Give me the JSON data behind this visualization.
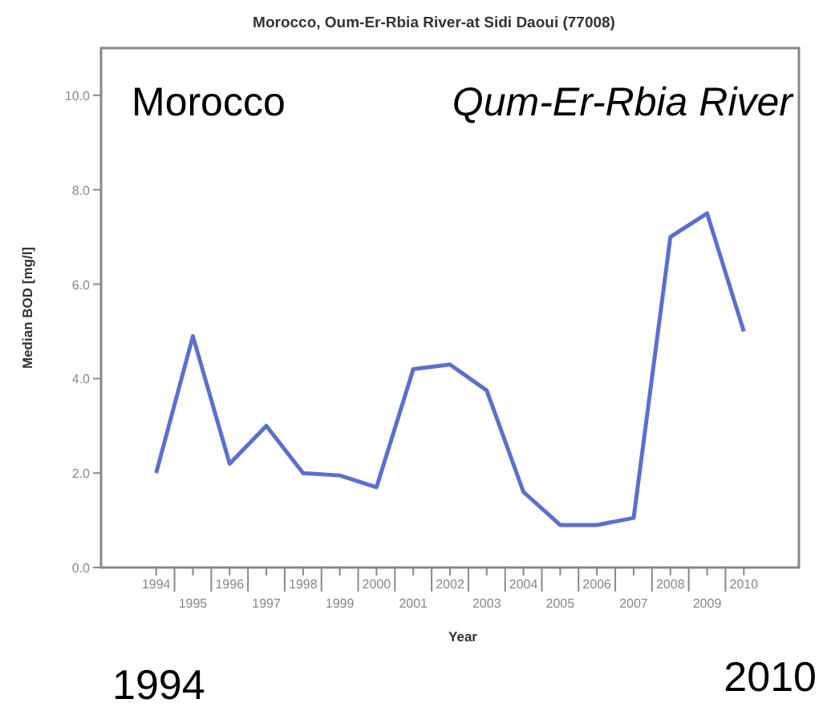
{
  "chart_data": {
    "type": "line",
    "title": "Morocco, Oum-Er-Rbia River-at Sidi Daoui (77008)",
    "xlabel": "Year",
    "ylabel": "Median BOD [mg/l]",
    "categories": [
      "1994",
      "1995",
      "1996",
      "1997",
      "1998",
      "1999",
      "2000",
      "2001",
      "2002",
      "2003",
      "2004",
      "2005",
      "2006",
      "2007",
      "2008",
      "2009",
      "2010"
    ],
    "series": [
      {
        "color": "#5b6fd0",
        "values": [
          2.0,
          4.9,
          2.2,
          3.0,
          2.0,
          1.95,
          1.7,
          4.2,
          4.3,
          3.75,
          1.6,
          0.9,
          0.9,
          1.05,
          7.0,
          7.5,
          5.0
        ]
      }
    ],
    "ylim": [
      0,
      11
    ],
    "yticks": [
      {
        "value": 0,
        "label": "0.0"
      },
      {
        "value": 2,
        "label": "2.0"
      },
      {
        "value": 4,
        "label": "4.0"
      },
      {
        "value": 6,
        "label": "6.0"
      },
      {
        "value": 8,
        "label": "8.0"
      },
      {
        "value": 10,
        "label": "10.0"
      }
    ],
    "grid": false,
    "marker": "none",
    "line_style": "solid",
    "annotations": [
      "Morocco",
      "Qum-Er-Rbia River",
      "1994",
      "2010"
    ]
  }
}
